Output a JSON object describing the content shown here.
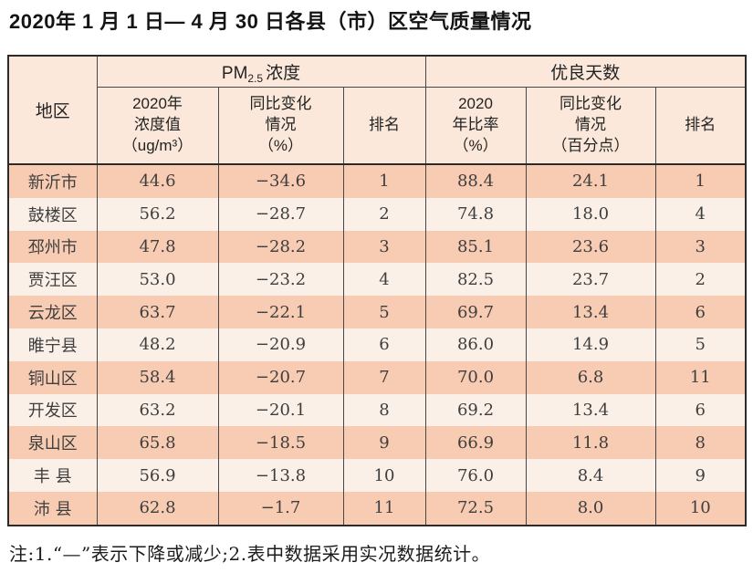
{
  "title": "2020年 1 月 1 日— 4 月 30 日各县（市）区空气质量情况",
  "note": "注:1.“—”表示下降或减少;2.表中数据采用实况数据统计。",
  "table": {
    "region_header": "地区",
    "pm_group": {
      "prefix": "PM",
      "sub": "2.5",
      "suffix": "浓度"
    },
    "good_days_header": "优良天数",
    "subheaders": [
      "2020年\n浓度值\n（ug/m³）",
      "同比变化\n情况\n（%）",
      "排名",
      "2020\n年比率\n（%）",
      "同比变化\n情况\n（百分点）",
      "排名"
    ],
    "rows": [
      [
        "新沂市",
        "44.6",
        "−34.6",
        "1",
        "88.4",
        "24.1",
        "1"
      ],
      [
        "鼓楼区",
        "56.2",
        "−28.7",
        "2",
        "74.8",
        "18.0",
        "4"
      ],
      [
        "邳州市",
        "47.8",
        "−28.2",
        "3",
        "85.1",
        "23.6",
        "3"
      ],
      [
        "贾汪区",
        "53.0",
        "−23.2",
        "4",
        "82.5",
        "23.7",
        "2"
      ],
      [
        "云龙区",
        "63.7",
        "−22.1",
        "5",
        "69.7",
        "13.4",
        "6"
      ],
      [
        "睢宁县",
        "48.2",
        "−20.9",
        "6",
        "86.0",
        "14.9",
        "5"
      ],
      [
        "铜山区",
        "58.4",
        "−20.7",
        "7",
        "70.0",
        "6.8",
        "11"
      ],
      [
        "开发区",
        "63.2",
        "−20.1",
        "8",
        "69.2",
        "13.4",
        "6"
      ],
      [
        "泉山区",
        "65.8",
        "−18.5",
        "9",
        "66.9",
        "11.8",
        "8"
      ],
      [
        "丰 县",
        "56.9",
        "−13.8",
        "10",
        "76.0",
        "8.4",
        "9"
      ],
      [
        "沛 县",
        "62.8",
        "−1.7",
        "11",
        "72.5",
        "8.0",
        "10"
      ]
    ]
  },
  "colors": {
    "row_odd": "#f8ccb3",
    "row_even": "#fbf0e8",
    "header_bg": "#fbe8db",
    "border_dark": "#2b2b2b",
    "border_inner": "#474747"
  }
}
